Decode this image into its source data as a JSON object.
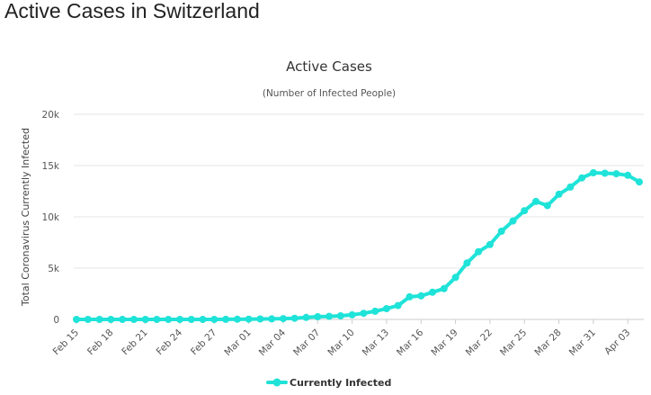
{
  "page": {
    "heading": "Active Cases in Switzerland"
  },
  "colors": {
    "series": "#1fe3d8",
    "grid": "#e6e6e6",
    "axis": "#cccccc",
    "text": "#555555"
  },
  "chart_data": {
    "type": "line",
    "title": "Active Cases",
    "subtitle": "(Number of Infected People)",
    "xlabel": "",
    "ylabel": "Total Coronavirus Currently Infected",
    "ylim": [
      0,
      20000
    ],
    "y_ticks": [
      0,
      5000,
      10000,
      15000,
      20000
    ],
    "y_tick_labels": [
      "0",
      "5k",
      "10k",
      "15k",
      "20k"
    ],
    "grid": true,
    "legend_position": "bottom-center",
    "categories": [
      "Feb 15",
      "Feb 16",
      "Feb 17",
      "Feb 18",
      "Feb 19",
      "Feb 20",
      "Feb 21",
      "Feb 22",
      "Feb 23",
      "Feb 24",
      "Feb 25",
      "Feb 26",
      "Feb 27",
      "Feb 28",
      "Feb 29",
      "Mar 01",
      "Mar 02",
      "Mar 03",
      "Mar 04",
      "Mar 05",
      "Mar 06",
      "Mar 07",
      "Mar 08",
      "Mar 09",
      "Mar 10",
      "Mar 11",
      "Mar 12",
      "Mar 13",
      "Mar 14",
      "Mar 15",
      "Mar 16",
      "Mar 17",
      "Mar 18",
      "Mar 19",
      "Mar 20",
      "Mar 21",
      "Mar 22",
      "Mar 23",
      "Mar 24",
      "Mar 25",
      "Mar 26",
      "Mar 27",
      "Mar 28",
      "Mar 29",
      "Mar 30",
      "Mar 31",
      "Apr 01",
      "Apr 02",
      "Apr 03",
      "Apr 04"
    ],
    "tick_labels": [
      "Feb 15",
      "Feb 18",
      "Feb 21",
      "Feb 24",
      "Feb 27",
      "Mar 01",
      "Mar 04",
      "Mar 07",
      "Mar 10",
      "Mar 13",
      "Mar 16",
      "Mar 19",
      "Mar 22",
      "Mar 25",
      "Mar 28",
      "Mar 31",
      "Apr 03"
    ],
    "series": [
      {
        "name": "Currently Infected",
        "values": [
          0,
          0,
          0,
          0,
          0,
          0,
          0,
          0,
          0,
          0,
          0,
          0,
          0,
          10,
          15,
          25,
          40,
          55,
          80,
          110,
          190,
          260,
          300,
          350,
          450,
          600,
          800,
          1050,
          1350,
          2200,
          2300,
          2650,
          3000,
          4100,
          5500,
          6600,
          7300,
          8600,
          9600,
          10600,
          11500,
          11100,
          12200,
          12900,
          13800,
          14300,
          14250,
          14200,
          14050,
          13400
        ]
      }
    ]
  }
}
